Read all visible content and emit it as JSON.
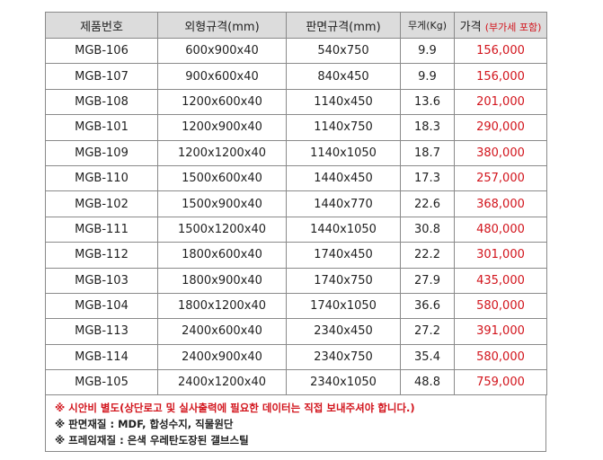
{
  "header": {
    "model": "제품번호",
    "outer": "외형규격(mm)",
    "board": "판면규격(mm)",
    "weight": "무게(Kg)",
    "price": "가격",
    "price_note": "(부가세 포함)"
  },
  "rows": [
    {
      "model": "MGB-106",
      "outer": "600x900x40",
      "board": "540x750",
      "weight": "9.9",
      "price": "156,000"
    },
    {
      "model": "MGB-107",
      "outer": "900x600x40",
      "board": "840x450",
      "weight": "9.9",
      "price": "156,000"
    },
    {
      "model": "MGB-108",
      "outer": "1200x600x40",
      "board": "1140x450",
      "weight": "13.6",
      "price": "201,000"
    },
    {
      "model": "MGB-101",
      "outer": "1200x900x40",
      "board": "1140x750",
      "weight": "18.3",
      "price": "290,000"
    },
    {
      "model": "MGB-109",
      "outer": "1200x1200x40",
      "board": "1140x1050",
      "weight": "18.7",
      "price": "380,000"
    },
    {
      "model": "MGB-110",
      "outer": "1500x600x40",
      "board": "1440x450",
      "weight": "17.3",
      "price": "257,000"
    },
    {
      "model": "MGB-102",
      "outer": "1500x900x40",
      "board": "1440x770",
      "weight": "22.6",
      "price": "368,000"
    },
    {
      "model": "MGB-111",
      "outer": "1500x1200x40",
      "board": "1440x1050",
      "weight": "30.8",
      "price": "480,000"
    },
    {
      "model": "MGB-112",
      "outer": "1800x600x40",
      "board": "1740x450",
      "weight": "22.2",
      "price": "301,000"
    },
    {
      "model": "MGB-103",
      "outer": "1800x900x40",
      "board": "1740x750",
      "weight": "27.9",
      "price": "435,000"
    },
    {
      "model": "MGB-104",
      "outer": "1800x1200x40",
      "board": "1740x1050",
      "weight": "36.6",
      "price": "580,000"
    },
    {
      "model": "MGB-113",
      "outer": "2400x600x40",
      "board": "2340x450",
      "weight": "27.2",
      "price": "391,000"
    },
    {
      "model": "MGB-114",
      "outer": "2400x900x40",
      "board": "2340x750",
      "weight": "35.4",
      "price": "580,000"
    },
    {
      "model": "MGB-105",
      "outer": "2400x1200x40",
      "board": "2340x1050",
      "weight": "48.8",
      "price": "759,000"
    }
  ],
  "notes": [
    {
      "text": "※ 시안비 별도(상단로고 및 실사출력에 필요한 데이터는 직접 보내주셔야 합니다.)",
      "color": "#d2141c"
    },
    {
      "text": "※ 판면재질 : MDF, 합성수지, 직물원단",
      "color": "#222222"
    },
    {
      "text": "※ 프레임재질 : 은색 우레탄도장된 갤브스틸",
      "color": "#222222"
    }
  ],
  "colors": {
    "header_bg": "#dcdcdc",
    "price": "#d2141c",
    "border": "#8a8a8a"
  }
}
